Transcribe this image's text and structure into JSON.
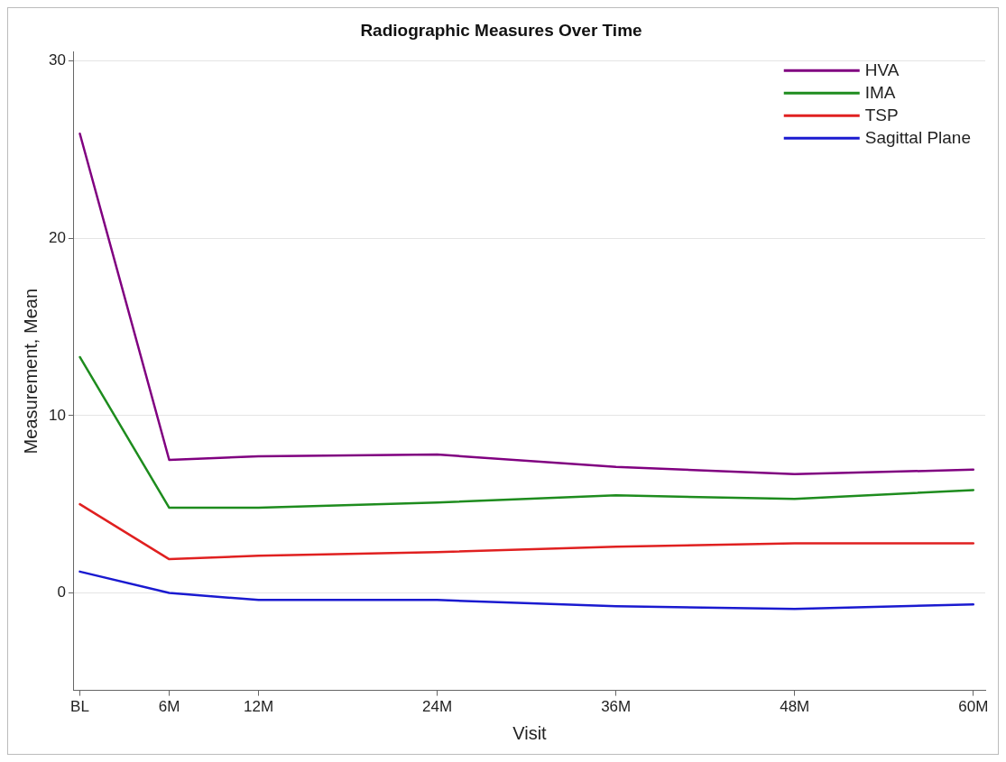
{
  "chart_data": {
    "type": "line",
    "title": "Radiographic Measures Over Time",
    "xlabel": "Visit",
    "ylabel": "Measurement, Mean",
    "x": [
      0,
      6,
      12,
      24,
      36,
      48,
      60
    ],
    "xlim": [
      -0.4,
      60.8
    ],
    "xticks": [
      {
        "value": 0,
        "label": "BL"
      },
      {
        "value": 6,
        "label": "6M"
      },
      {
        "value": 12,
        "label": "12M"
      },
      {
        "value": 24,
        "label": "24M"
      },
      {
        "value": 36,
        "label": "36M"
      },
      {
        "value": 48,
        "label": "48M"
      },
      {
        "value": 60,
        "label": "60M"
      }
    ],
    "ylim": [
      -5.5,
      30.5
    ],
    "yticks": [
      0,
      10,
      20,
      30
    ],
    "grid": "y",
    "legend": "top right",
    "marker": "none",
    "line_style": "solid",
    "series": [
      {
        "name": "HVA",
        "color": "#800080",
        "values": [
          25.9,
          7.5,
          7.7,
          7.8,
          7.1,
          6.7,
          6.95
        ]
      },
      {
        "name": "IMA",
        "color": "#1e8c1e",
        "values": [
          13.3,
          4.8,
          4.8,
          5.1,
          5.5,
          5.3,
          5.8
        ]
      },
      {
        "name": "TSP",
        "color": "#e02020",
        "values": [
          5.0,
          1.9,
          2.1,
          2.3,
          2.6,
          2.8,
          2.8
        ]
      },
      {
        "name": "Sagittal Plane",
        "color": "#1a1ad0",
        "values": [
          1.2,
          0,
          -0.4,
          -0.4,
          -0.75,
          -0.9,
          -0.65
        ]
      }
    ]
  }
}
